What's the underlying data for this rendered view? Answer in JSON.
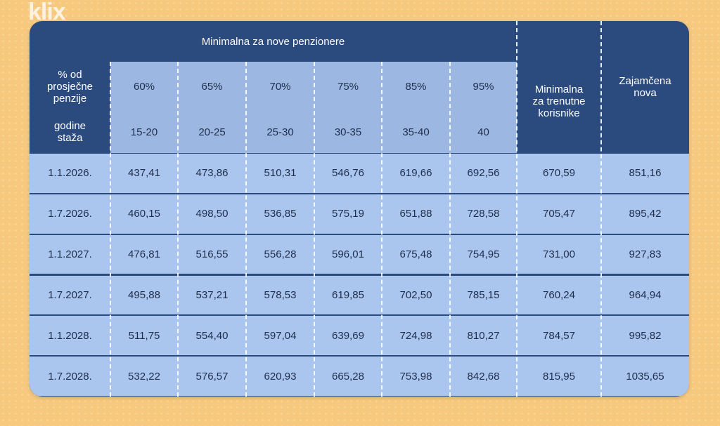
{
  "brand": "klix",
  "header": {
    "group_title": "Minimalna za nove penzionere",
    "percent_label": "% od prosječne penzije",
    "years_label": "godine staža",
    "percents": [
      "60%",
      "65%",
      "70%",
      "75%",
      "85%",
      "95%"
    ],
    "years": [
      "15-20",
      "20-25",
      "25-30",
      "30-35",
      "35-40",
      "40"
    ],
    "current_label": "Minimalna za trenutne korisnike",
    "guaranteed_label": "Zajamčena nova"
  },
  "rows": [
    [
      "1.1.2026.",
      "437,41",
      "473,86",
      "510,31",
      "546,76",
      "619,66",
      "692,56",
      "670,59",
      "851,16"
    ],
    [
      "1.7.2026.",
      "460,15",
      "498,50",
      "536,85",
      "575,19",
      "651,88",
      "728,58",
      "705,47",
      "895,42"
    ],
    [
      "1.1.2027.",
      "476,81",
      "516,55",
      "556,28",
      "596,01",
      "675,48",
      "754,95",
      "731,00",
      "927,83"
    ],
    [
      "1.7.2027.",
      "495,88",
      "537,21",
      "578,53",
      "619,85",
      "702,50",
      "785,15",
      "760,24",
      "964,94"
    ],
    [
      "1.1.2028.",
      "511,75",
      "554,40",
      "597,04",
      "639,69",
      "724,98",
      "810,27",
      "784,57",
      "995,82"
    ],
    [
      "1.7.2028.",
      "532,22",
      "576,57",
      "620,93",
      "665,28",
      "753,98",
      "842,68",
      "815,95",
      "1035,65"
    ]
  ]
}
